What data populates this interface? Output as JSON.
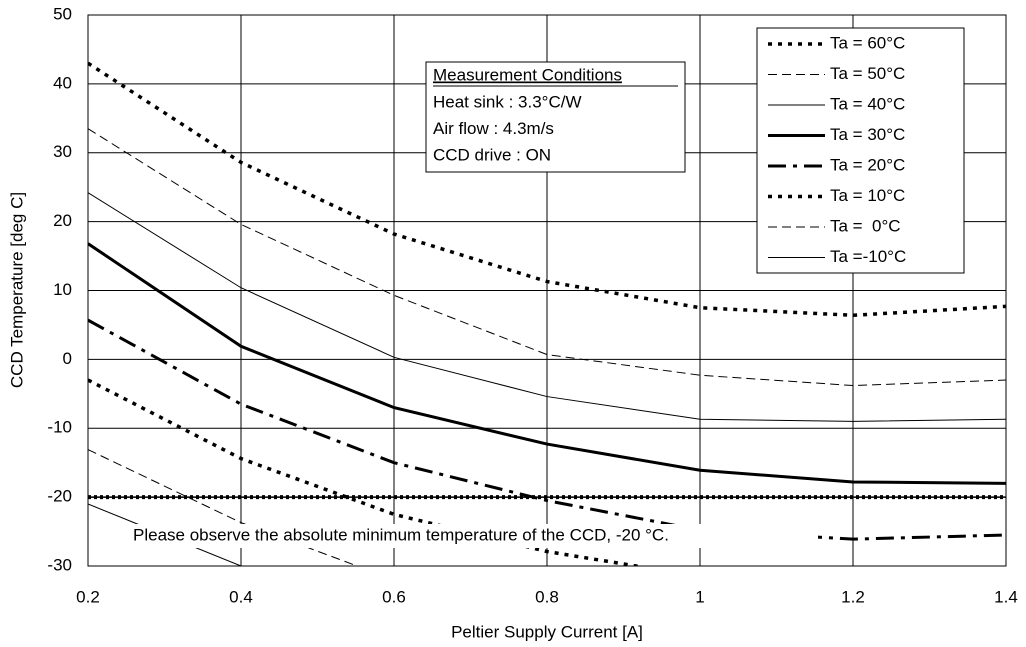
{
  "chart_data": {
    "type": "line",
    "xlabel": "Peltier Supply Current [A]",
    "ylabel": "CCD Temperature [deg C]",
    "x": [
      0.2,
      0.4,
      0.6,
      0.8,
      1,
      1.2,
      1.4
    ],
    "xlim": [
      0.2,
      1.4
    ],
    "xticks": [
      0.2,
      0.4,
      0.6,
      0.8,
      1,
      1.2,
      1.4
    ],
    "ylim": [
      -30,
      50
    ],
    "yticks": [
      -30,
      -20,
      -10,
      0,
      10,
      20,
      30,
      40,
      50
    ],
    "grid": true,
    "legend": "upper right",
    "series": [
      {
        "name": "Ta = 60°C",
        "color": "#000000",
        "style": "dotted-thick",
        "values": [
          43,
          28.6,
          18.2,
          11.3,
          7.5,
          6.4,
          7.7
        ]
      },
      {
        "name": "Ta = 50°C",
        "color": "#000000",
        "style": "dashed-thin",
        "values": [
          33.5,
          19.6,
          9.3,
          0.7,
          -2.3,
          -3.8,
          -3.0
        ]
      },
      {
        "name": "Ta = 40°C",
        "color": "#000000",
        "style": "solid-thin",
        "values": [
          24.2,
          10.4,
          0.3,
          -5.4,
          -8.7,
          -9.0,
          -8.7
        ]
      },
      {
        "name": "Ta = 30°C",
        "color": "#000000",
        "style": "solid-thick",
        "values": [
          16.8,
          1.9,
          -7.0,
          -12.3,
          -16.1,
          -17.8,
          -18.0
        ]
      },
      {
        "name": "Ta = 20°C",
        "color": "#000000",
        "style": "dashdot-thick",
        "values": [
          5.7,
          -6.5,
          -15.0,
          -20.5,
          -24.8,
          -26.1,
          -25.5
        ]
      },
      {
        "name": "Ta = 10°C",
        "color": "#000000",
        "style": "dotted-thick",
        "values": [
          -3.0,
          -14.4,
          -22.5,
          -27.9,
          -31.5,
          null,
          null
        ]
      },
      {
        "name": "Ta =  0°C",
        "color": "#000000",
        "style": "dashed-thin",
        "values": [
          -13.1,
          -23.7,
          -32,
          null,
          null,
          null,
          null
        ]
      },
      {
        "name": "Ta =-10°C",
        "color": "#000000",
        "style": "solid-thin",
        "values": [
          -21,
          -30,
          null,
          null,
          null,
          null,
          null
        ]
      }
    ],
    "reference_line": {
      "value": -20,
      "label": "Please observe the absolute minimum temperature of the CCD, -20 °C."
    },
    "conditions": {
      "title": "Measurement Conditions",
      "lines": [
        "Heat sink : 3.3°C/W",
        "Air flow : 4.3m/s",
        "CCD drive : ON"
      ]
    }
  }
}
